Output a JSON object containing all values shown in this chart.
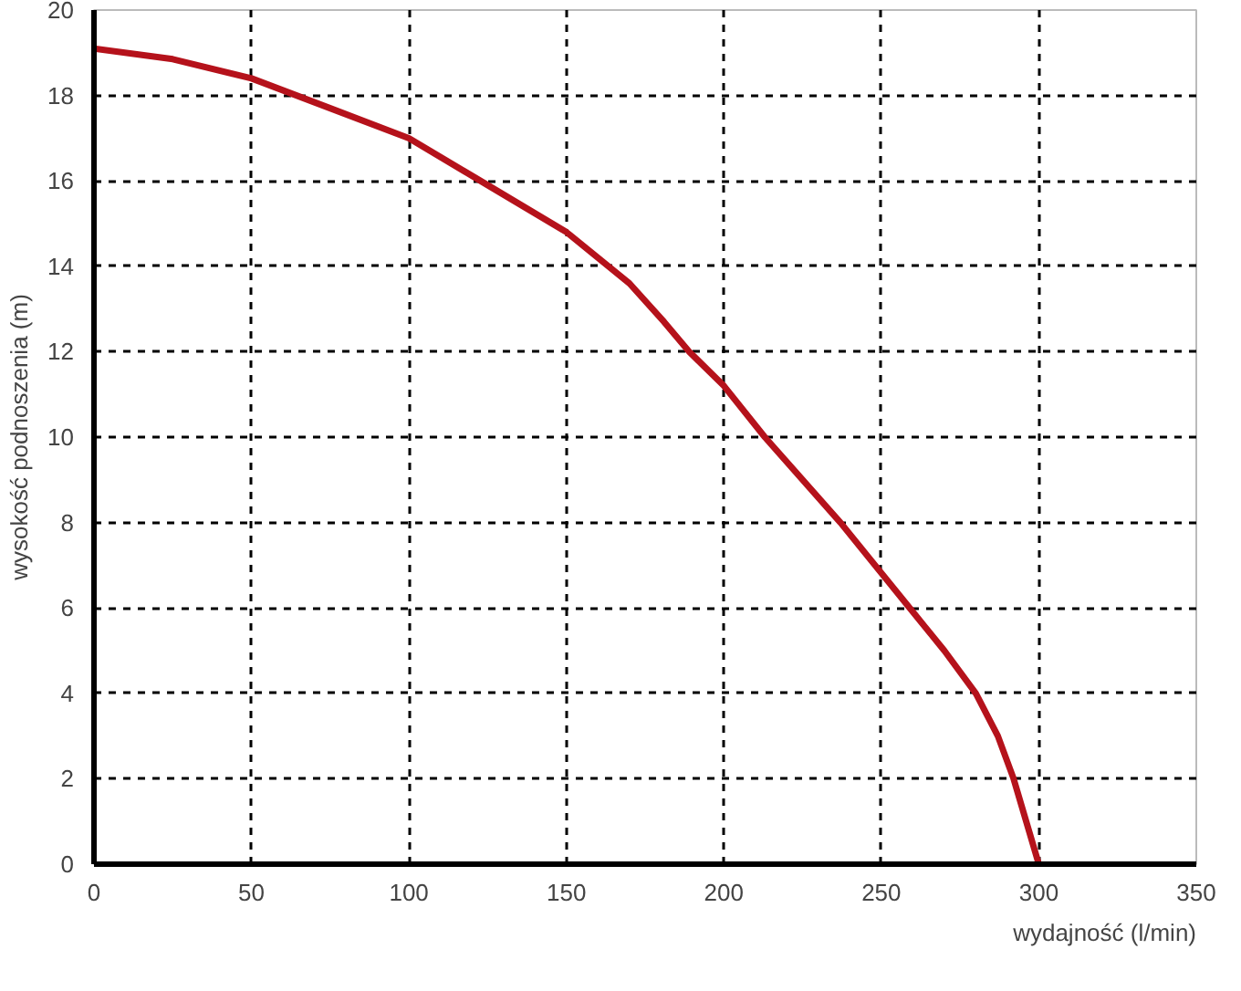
{
  "chart_data": {
    "type": "line",
    "xlabel": "wydajność (l/min)",
    "ylabel": "wysokość podnoszenia (m)",
    "x": [
      0,
      25,
      50,
      75,
      100,
      125,
      150,
      170,
      181,
      189,
      200,
      213,
      237,
      259,
      270,
      280,
      287,
      292,
      296,
      300
    ],
    "series": [
      {
        "color": "#b5121b",
        "values": [
          19.1,
          18.85,
          18.4,
          17.7,
          17.0,
          15.9,
          14.8,
          13.6,
          12.7,
          12.0,
          11.2,
          10.0,
          8.0,
          6.0,
          5.0,
          4.0,
          3.0,
          2.0,
          1.0,
          0
        ]
      }
    ],
    "xlim": [
      0,
      350
    ],
    "ylim": [
      0,
      20
    ],
    "xticks": [
      0,
      50,
      100,
      150,
      200,
      250,
      300,
      350
    ],
    "yticks": [
      0,
      2,
      4,
      6,
      8,
      10,
      12,
      14,
      16,
      18,
      20
    ],
    "grid": true,
    "marker": "none",
    "line_style": "solid"
  }
}
